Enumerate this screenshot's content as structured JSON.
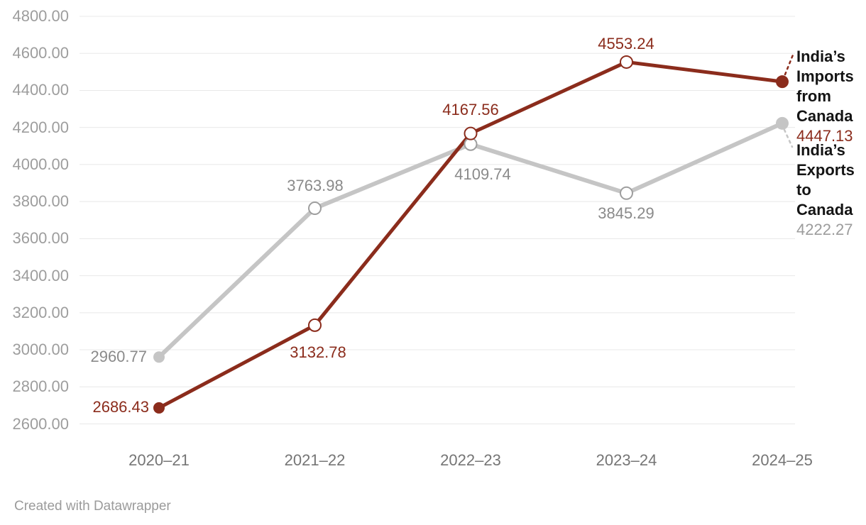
{
  "chart_data": {
    "type": "line",
    "title": "",
    "categories": [
      "2020–21",
      "2021–22",
      "2022–23",
      "2023–24",
      "2024–25"
    ],
    "series": [
      {
        "name": "India’s Imports from Canada",
        "values": [
          2686.43,
          3132.78,
          4167.56,
          4553.24,
          4447.13
        ],
        "end_label": "4447.13",
        "color_key": "imports_line"
      },
      {
        "name": "India’s Exports to Canada",
        "values": [
          2960.77,
          3763.98,
          4109.74,
          3845.29,
          4222.27
        ],
        "end_label": "4222.27",
        "color_key": "exports_line"
      }
    ],
    "y_ticks": [
      "4800.00",
      "4600.00",
      "4400.00",
      "4200.00",
      "4000.00",
      "3800.00",
      "3600.00",
      "3400.00",
      "3200.00",
      "3000.00",
      "2800.00",
      "2600.00"
    ],
    "ylim": [
      2600,
      4800
    ],
    "y_tick_step": 200,
    "grid": "horizontal",
    "legend_position": "right-end-of-line",
    "footer": "Created with Datawrapper",
    "colors": {
      "imports_line": "#8b2c1c",
      "exports_line": "#c5c5c5",
      "exports_point_stroke": "#9e9e9e",
      "hollow_point_fill": "#ffffff",
      "grid_line": "#e8e8e8",
      "y_tick_text": "#9d9d9d",
      "x_tick_text": "#757575",
      "exports_value_text": "#8a8a8a",
      "legend_end_value_gray": "#9c9c9c",
      "legend_name_text": "#141414",
      "footer_text": "#9b9b9b"
    }
  }
}
